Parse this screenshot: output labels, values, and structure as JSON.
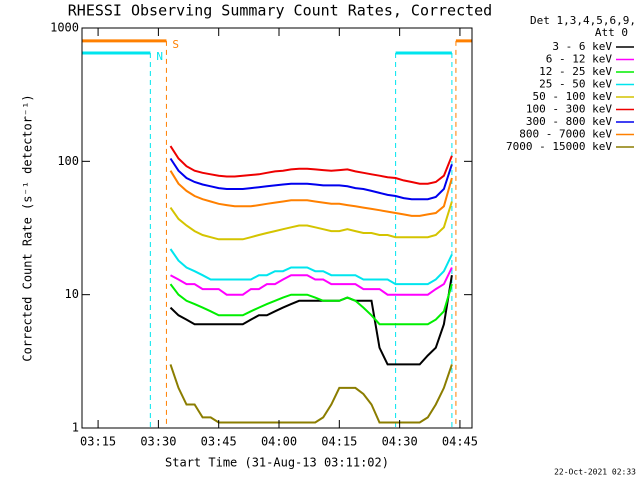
{
  "chart_data": {
    "type": "line",
    "title": "RHESSI Observing Summary Count Rates, Corrected",
    "x_label": "Start Time (31-Aug-13 03:11:02)",
    "y_label": "Corrected Count Rate (s⁻¹ detector⁻¹)",
    "legend_title": [
      "Det 1,3,4,5,6,9,",
      "Att 0"
    ],
    "footer": "22-Oct-2021 02:33",
    "log_y": true,
    "xlim": [
      "03:11",
      "04:48"
    ],
    "xticks": [
      "03:15",
      "03:30",
      "03:45",
      "04:00",
      "04:15",
      "04:30",
      "04:45"
    ],
    "ylim": [
      1,
      1000
    ],
    "yticks": [
      1,
      10,
      100,
      1000
    ],
    "x": [
      "03:33",
      "03:35",
      "03:37",
      "03:39",
      "03:41",
      "03:43",
      "03:45",
      "03:47",
      "03:49",
      "03:51",
      "03:53",
      "03:55",
      "03:57",
      "03:59",
      "04:01",
      "04:03",
      "04:05",
      "04:07",
      "04:09",
      "04:11",
      "04:13",
      "04:15",
      "04:17",
      "04:19",
      "04:21",
      "04:23",
      "04:25",
      "04:27",
      "04:29",
      "04:31",
      "04:33",
      "04:35",
      "04:37",
      "04:39",
      "04:41",
      "04:43"
    ],
    "series": [
      {
        "name": "3 - 6 keV",
        "color": "#000000",
        "values": [
          8,
          7,
          6.5,
          6,
          6,
          6,
          6,
          6,
          6,
          6,
          6.5,
          7,
          7,
          7.5,
          8,
          8.5,
          9,
          9,
          9,
          9,
          9,
          9,
          9.5,
          9,
          9,
          9,
          4,
          3,
          3,
          3,
          3,
          3,
          3.5,
          4,
          6,
          14
        ]
      },
      {
        "name": "6 - 12 keV",
        "color": "#ff00ff",
        "values": [
          14,
          13,
          12,
          12,
          11,
          11,
          11,
          10,
          10,
          10,
          11,
          11,
          12,
          12,
          13,
          14,
          14,
          14,
          13,
          13,
          12,
          12,
          12,
          12,
          11,
          11,
          11,
          10,
          10,
          10,
          10,
          10,
          10,
          11,
          12,
          16
        ]
      },
      {
        "name": "12 - 25 keV",
        "color": "#00ee00",
        "values": [
          12,
          10,
          9,
          8.5,
          8,
          7.5,
          7,
          7,
          7,
          7,
          7.5,
          8,
          8.5,
          9,
          9.5,
          10,
          10,
          10,
          9.5,
          9,
          9,
          9,
          9.5,
          9,
          8,
          7,
          6,
          6,
          6,
          6,
          6,
          6,
          6,
          6.5,
          7.5,
          12
        ]
      },
      {
        "name": "25 - 50 keV",
        "color": "#00e5ee",
        "values": [
          22,
          18,
          16,
          15,
          14,
          13,
          13,
          13,
          13,
          13,
          13,
          14,
          14,
          15,
          15,
          16,
          16,
          16,
          15,
          15,
          14,
          14,
          14,
          14,
          13,
          13,
          13,
          13,
          12,
          12,
          12,
          12,
          12,
          13,
          15,
          20
        ]
      },
      {
        "name": "50 - 100 keV",
        "color": "#d4c400",
        "values": [
          45,
          37,
          33,
          30,
          28,
          27,
          26,
          26,
          26,
          26,
          27,
          28,
          29,
          30,
          31,
          32,
          33,
          33,
          32,
          31,
          30,
          30,
          31,
          30,
          29,
          29,
          28,
          28,
          27,
          27,
          27,
          27,
          27,
          28,
          32,
          50
        ]
      },
      {
        "name": "100 - 300 keV",
        "color": "#ee0000",
        "values": [
          130,
          105,
          92,
          85,
          82,
          80,
          78,
          77,
          77,
          78,
          79,
          80,
          82,
          84,
          85,
          87,
          88,
          88,
          87,
          86,
          85,
          86,
          87,
          84,
          82,
          80,
          78,
          76,
          75,
          72,
          70,
          68,
          68,
          70,
          78,
          110
        ]
      },
      {
        "name": "300 - 800 keV",
        "color": "#0000ee",
        "values": [
          105,
          85,
          75,
          70,
          67,
          65,
          63,
          62,
          62,
          62,
          63,
          64,
          65,
          66,
          67,
          68,
          68,
          68,
          67,
          66,
          66,
          66,
          65,
          63,
          62,
          60,
          58,
          56,
          55,
          53,
          52,
          52,
          52,
          54,
          62,
          95
        ]
      },
      {
        "name": "800 - 7000 keV",
        "color": "#ff8000",
        "values": [
          85,
          68,
          60,
          55,
          52,
          50,
          48,
          47,
          46,
          46,
          46,
          47,
          48,
          49,
          50,
          51,
          51,
          51,
          50,
          49,
          48,
          48,
          47,
          46,
          45,
          44,
          43,
          42,
          41,
          40,
          39,
          39,
          40,
          41,
          46,
          75
        ]
      },
      {
        "name": "7000 - 15000 keV",
        "color": "#8b7d00",
        "values": [
          3,
          2,
          1.5,
          1.5,
          1.2,
          1.2,
          1.1,
          1.1,
          1.1,
          1.1,
          1.1,
          1.1,
          1.1,
          1.1,
          1.1,
          1.1,
          1.1,
          1.1,
          1.1,
          1.2,
          1.5,
          2,
          2,
          2,
          1.8,
          1.5,
          1.1,
          1.1,
          1.1,
          1.1,
          1.1,
          1.1,
          1.2,
          1.5,
          2,
          3
        ]
      }
    ],
    "flags": [
      {
        "label": "S",
        "color": "#ff8000",
        "level": 800,
        "spans": [
          [
            "03:11",
            "03:32"
          ],
          [
            "04:44",
            "04:48"
          ]
        ]
      },
      {
        "label": "N",
        "color": "#00e5ee",
        "level": 650,
        "spans": [
          [
            "03:11",
            "03:28"
          ],
          [
            "04:29",
            "04:43"
          ]
        ]
      }
    ]
  }
}
